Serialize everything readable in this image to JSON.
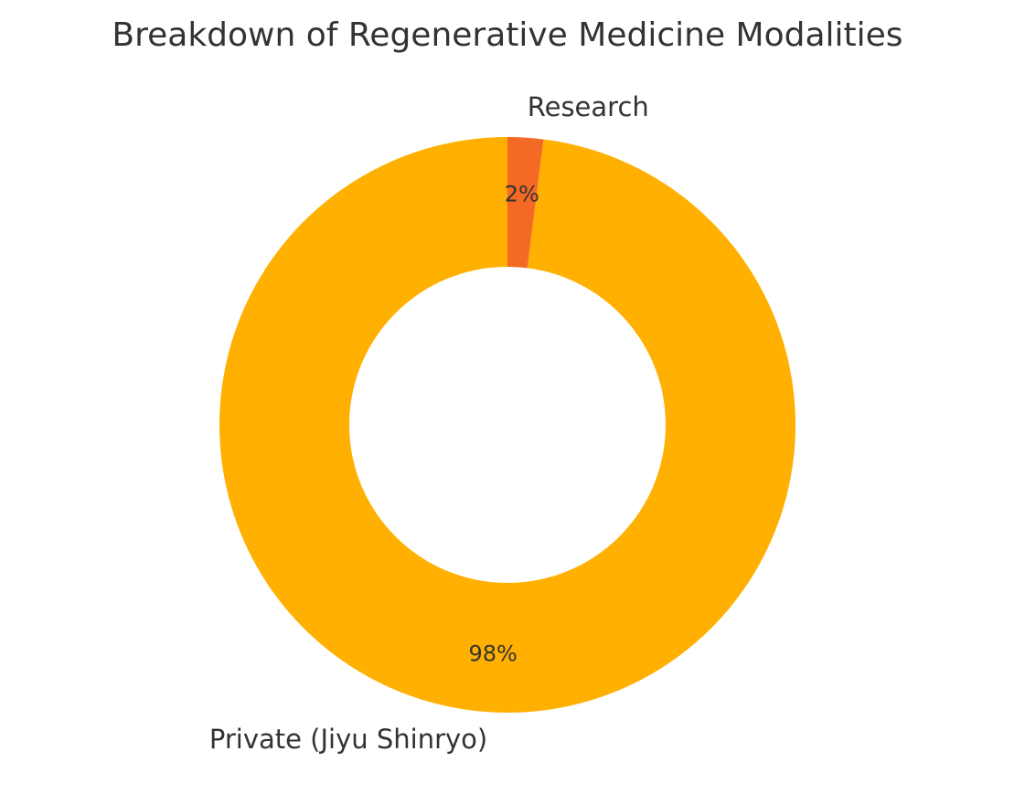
{
  "chart_data": {
    "type": "donut",
    "title": "Breakdown of Regenerative Medicine Modalities",
    "categories": [
      "Private (Jiyu Shinryo)",
      "Research"
    ],
    "values": [
      98,
      2
    ],
    "value_labels": [
      "98%",
      "2%"
    ],
    "colors": [
      "#ffb000",
      "#f46a25"
    ]
  }
}
